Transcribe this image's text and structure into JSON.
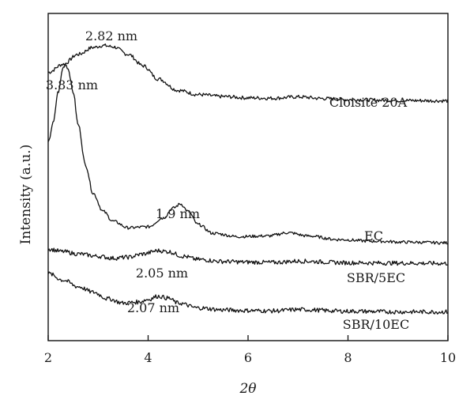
{
  "chart_data": {
    "type": "line",
    "title": "",
    "xlabel": "2θ",
    "ylabel": "Intensity (a.u.)",
    "xlim": [
      2,
      10
    ],
    "ylim": [
      0,
      100
    ],
    "xticks": [
      2,
      4,
      6,
      8,
      10
    ],
    "yticks_shown": false,
    "grid": false,
    "legend": "none",
    "series": [
      {
        "name": "Cloisite 20A",
        "x": [
          2.0,
          2.3,
          2.6,
          2.9,
          3.1,
          3.3,
          3.6,
          3.9,
          4.2,
          4.6,
          5.0,
          5.5,
          6.0,
          6.5,
          7.0,
          7.5,
          8.0,
          9.0,
          10.0
        ],
        "y": [
          82.0,
          84.5,
          87.5,
          89.6,
          90.2,
          89.8,
          87.5,
          84.0,
          80.0,
          76.5,
          75.2,
          74.6,
          74.2,
          74.1,
          74.5,
          74.0,
          73.7,
          73.4,
          73.3
        ]
      },
      {
        "name": "EC",
        "x": [
          2.0,
          2.1,
          2.2,
          2.3,
          2.35,
          2.4,
          2.5,
          2.6,
          2.75,
          2.9,
          3.1,
          3.3,
          3.6,
          4.0,
          4.3,
          4.5,
          4.65,
          4.8,
          5.0,
          5.3,
          5.8,
          6.4,
          6.8,
          7.2,
          7.8,
          8.5,
          9.2,
          10.0
        ],
        "y": [
          60.5,
          66.5,
          76.0,
          83.5,
          84.5,
          83.0,
          76.0,
          66.0,
          53.5,
          45.0,
          39.5,
          36.5,
          34.5,
          34.8,
          37.5,
          40.5,
          41.8,
          39.5,
          35.5,
          32.8,
          31.8,
          32.0,
          33.0,
          32.0,
          30.9,
          30.4,
          30.1,
          29.9
        ]
      },
      {
        "name": "SBR/5EC",
        "x": [
          2.0,
          2.3,
          2.6,
          3.0,
          3.3,
          3.6,
          3.9,
          4.2,
          4.4,
          4.7,
          5.0,
          5.5,
          6.0,
          6.5,
          7.0,
          8.0,
          9.0,
          10.0
        ],
        "y": [
          28.0,
          27.2,
          26.5,
          25.8,
          25.2,
          25.5,
          26.5,
          27.5,
          27.2,
          25.8,
          24.8,
          24.2,
          24.0,
          23.9,
          24.3,
          23.8,
          23.7,
          23.6
        ]
      },
      {
        "name": "SBR/10EC",
        "x": [
          2.0,
          2.3,
          2.6,
          2.9,
          3.2,
          3.5,
          3.8,
          4.0,
          4.2,
          4.4,
          4.6,
          5.0,
          5.5,
          6.0,
          6.5,
          7.0,
          8.0,
          9.0,
          10.0
        ],
        "y": [
          20.5,
          18.5,
          16.5,
          14.8,
          12.8,
          11.5,
          11.8,
          12.6,
          13.6,
          13.0,
          11.5,
          10.0,
          9.4,
          9.2,
          9.1,
          9.5,
          9.0,
          8.8,
          8.8
        ]
      }
    ],
    "series_labels": [
      "Cloisite 20A",
      "EC",
      "SBR/5EC",
      "SBR/10EC"
    ],
    "annotations": [
      {
        "text": "2.82 nm",
        "x": 3.1,
        "y": 90.2,
        "series": "Cloisite 20A"
      },
      {
        "text": "3.83 nm",
        "x": 2.35,
        "y": 84.5,
        "series": "EC"
      },
      {
        "text": "1.9 nm",
        "x": 4.65,
        "y": 41.8,
        "series": "EC"
      },
      {
        "text": "2.05 nm",
        "x": 4.3,
        "y": 27.5,
        "series": "SBR/5EC"
      },
      {
        "text": "2.07 nm",
        "x": 4.2,
        "y": 13.6,
        "series": "SBR/10EC"
      }
    ]
  }
}
